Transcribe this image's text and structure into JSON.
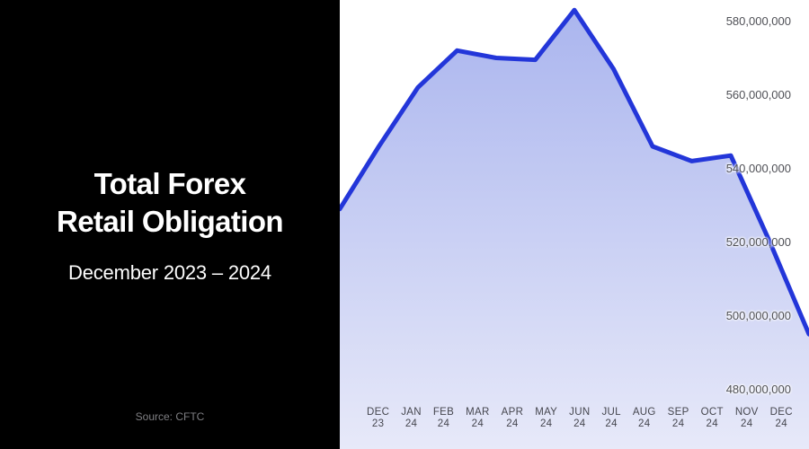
{
  "panel": {
    "title_line1": "Total Forex",
    "title_line2": "Retail Obligation",
    "subtitle": "December 2023 – 2024",
    "source": "Source: CFTC"
  },
  "chart_data": {
    "type": "area",
    "title": "Total Forex Retail Obligation",
    "subtitle": "December 2023 – 2024",
    "source": "Source: CFTC",
    "categories": [
      "DEC 23",
      "JAN 24",
      "FEB 24",
      "MAR 24",
      "APR 24",
      "MAY 24",
      "JUN 24",
      "JUL 24",
      "AUG 24",
      "SEP 24",
      "OCT 24",
      "NOV 24",
      "DEC 24"
    ],
    "x_ticks": [
      {
        "month": "DEC",
        "year": "23"
      },
      {
        "month": "JAN",
        "year": "24"
      },
      {
        "month": "FEB",
        "year": "24"
      },
      {
        "month": "MAR",
        "year": "24"
      },
      {
        "month": "APR",
        "year": "24"
      },
      {
        "month": "MAY",
        "year": "24"
      },
      {
        "month": "JUN",
        "year": "24"
      },
      {
        "month": "JUL",
        "year": "24"
      },
      {
        "month": "AUG",
        "year": "24"
      },
      {
        "month": "SEP",
        "year": "24"
      },
      {
        "month": "OCT",
        "year": "24"
      },
      {
        "month": "NOV",
        "year": "24"
      },
      {
        "month": "DEC",
        "year": "24"
      }
    ],
    "values": [
      529000000,
      546000000,
      562000000,
      572000000,
      570000000,
      569500000,
      583000000,
      567000000,
      546000000,
      542000000,
      543500000,
      520000000,
      495000000
    ],
    "y_axis": {
      "top_value": 580000000,
      "step": 20000000,
      "ticks": [
        {
          "value": 580000000,
          "label": "580,000,000"
        },
        {
          "value": 560000000,
          "label": "560,000,000"
        },
        {
          "value": 540000000,
          "label": "540,000,000"
        },
        {
          "value": 520000000,
          "label": "520,000,000"
        },
        {
          "value": 500000000,
          "label": "500,000,000"
        },
        {
          "value": 480000000,
          "label": "480,000,000"
        }
      ]
    },
    "ylim": [
      464000000,
      586000000
    ],
    "grid": false,
    "legend": "none",
    "colors": {
      "line": "#2336d9",
      "fill_top": "#a9b4ee",
      "fill_bottom": "#e7e9f9",
      "panel_bg": "#000000",
      "chart_bg": "#ffffff",
      "title_color": "#ffffff",
      "y_label_color": "#4f5056",
      "x_label_color": "#45464e"
    }
  }
}
